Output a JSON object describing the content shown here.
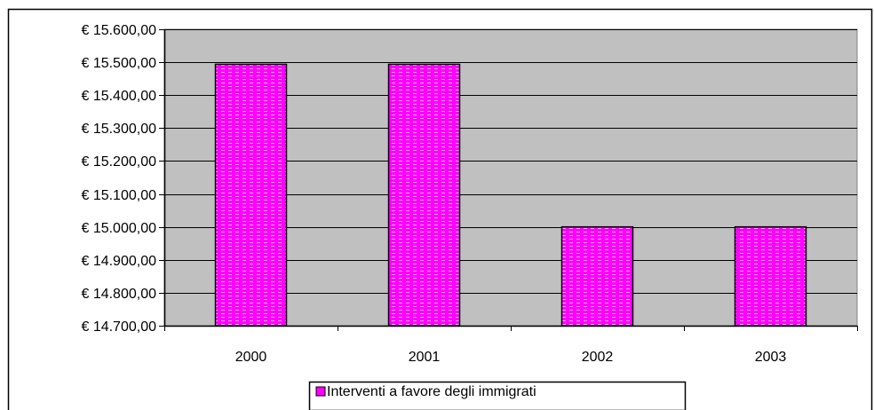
{
  "chart_data": {
    "type": "bar",
    "categories": [
      "2000",
      "2001",
      "2002",
      "2003"
    ],
    "series": [
      {
        "name": "Interventi a favore degli immigrati",
        "values": [
          15493.71,
          15493.71,
          15000.0,
          15000.0
        ]
      }
    ],
    "ylim": [
      14700,
      15600
    ],
    "yticks": [
      14700,
      14800,
      14900,
      15000,
      15100,
      15200,
      15300,
      15400,
      15500,
      15600
    ],
    "ytick_labels": [
      "€ 14.700,00",
      "€ 14.800,00",
      "€ 14.900,00",
      "€ 15.000,00",
      "€ 15.100,00",
      "€ 15.200,00",
      "€ 15.300,00",
      "€ 15.400,00",
      "€ 15.500,00",
      "€ 15.600,00"
    ],
    "grid": true,
    "legend_position": "bottom",
    "colors": {
      "plot_background": "#c0c0c0",
      "bar_fill": "#ff00ff",
      "bar_pattern": "#ffb0ff",
      "bar_edge": "#000000",
      "gridline": "#000000"
    }
  }
}
